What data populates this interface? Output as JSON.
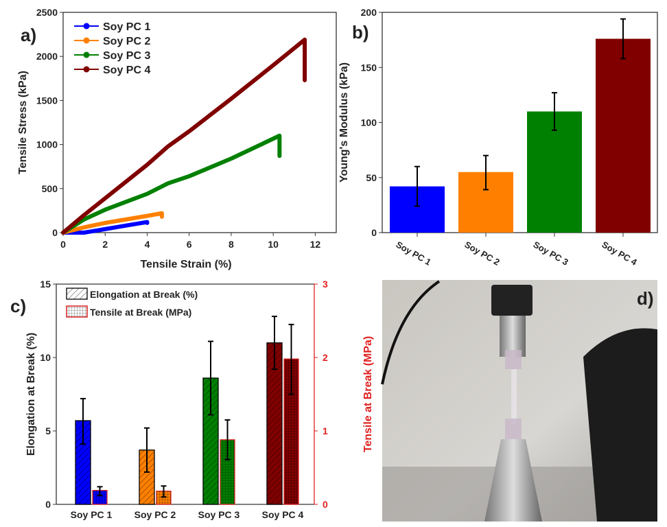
{
  "colors": {
    "pc1": "#0000ff",
    "pc2": "#ff8000",
    "pc3": "#008000",
    "pc4": "#800000",
    "right_axis": "#e02020"
  },
  "chart_data": [
    {
      "panel": "a)",
      "type": "line",
      "xlabel": "Tensile Strain (%)",
      "ylabel": "Tensile Stress (kPa)",
      "xlim": [
        0,
        13
      ],
      "ylim": [
        0,
        2500
      ],
      "xticks": [
        0,
        2,
        4,
        6,
        8,
        10,
        12
      ],
      "yticks": [
        0,
        500,
        1000,
        1500,
        2000,
        2500
      ],
      "legend": "top-left",
      "series": [
        {
          "name": "Soy PC 1",
          "color": "#0000ff",
          "points": [
            [
              0,
              0
            ],
            [
              1,
              0
            ],
            [
              2,
              40
            ],
            [
              3,
              80
            ],
            [
              4,
              120
            ],
            [
              4,
              110
            ]
          ]
        },
        {
          "name": "Soy PC 2",
          "color": "#ff8000",
          "points": [
            [
              0,
              0
            ],
            [
              1,
              60
            ],
            [
              2,
              110
            ],
            [
              3,
              150
            ],
            [
              4,
              190
            ],
            [
              4.7,
              220
            ],
            [
              4.7,
              180
            ]
          ]
        },
        {
          "name": "Soy PC 3",
          "color": "#008000",
          "points": [
            [
              0,
              0
            ],
            [
              1,
              150
            ],
            [
              2,
              260
            ],
            [
              4,
              440
            ],
            [
              5,
              560
            ],
            [
              6,
              640
            ],
            [
              8,
              840
            ],
            [
              10.3,
              1100
            ],
            [
              10.3,
              870
            ]
          ]
        },
        {
          "name": "Soy PC 4",
          "color": "#800000",
          "points": [
            [
              0,
              0
            ],
            [
              1,
              200
            ],
            [
              2,
              390
            ],
            [
              4,
              770
            ],
            [
              5,
              980
            ],
            [
              6,
              1150
            ],
            [
              8,
              1520
            ],
            [
              10,
              1900
            ],
            [
              11.5,
              2190
            ],
            [
              11.5,
              1730
            ]
          ]
        }
      ]
    },
    {
      "panel": "b)",
      "type": "bar",
      "ylabel": "Young's Modulus (kPa)",
      "ylim": [
        0,
        200
      ],
      "yticks": [
        0,
        50,
        100,
        150,
        200
      ],
      "categories": [
        "Soy PC 1",
        "Soy PC 2",
        "Soy PC 3",
        "Soy PC 4"
      ],
      "values": [
        42,
        55,
        110,
        176
      ],
      "error_low": [
        24,
        39,
        93,
        158
      ],
      "error_high": [
        60,
        70,
        127,
        194
      ],
      "colors": [
        "#0000ff",
        "#ff8000",
        "#008000",
        "#800000"
      ]
    },
    {
      "panel": "c)",
      "type": "bar",
      "ylabel": "Elongation at Break (%)",
      "y2label": "Tensile at Break (MPa)",
      "ylim": [
        0,
        15
      ],
      "y2lim": [
        0,
        3
      ],
      "yticks": [
        0,
        5,
        10,
        15
      ],
      "y2ticks": [
        0,
        1,
        2,
        3
      ],
      "legend": "top-left",
      "categories": [
        "Soy PC 1",
        "Soy PC 2",
        "Soy PC 3",
        "Soy PC 4"
      ],
      "series": [
        {
          "name": "Elongation at Break (%)",
          "axis": "left",
          "pattern": "hatch",
          "values": [
            5.7,
            3.7,
            8.6,
            11.0
          ],
          "error_low": [
            4.1,
            2.2,
            6.1,
            9.2
          ],
          "error_high": [
            7.2,
            5.2,
            11.1,
            12.8
          ]
        },
        {
          "name": "Tensile at Break (MPa)",
          "axis": "right",
          "pattern": "grid",
          "values": [
            0.19,
            0.18,
            0.88,
            1.98
          ],
          "error_low": [
            0.12,
            0.1,
            0.61,
            1.5
          ],
          "error_high": [
            0.24,
            0.25,
            1.15,
            2.45
          ]
        }
      ],
      "colors": [
        "#0000ff",
        "#ff8000",
        "#008000",
        "#800000"
      ]
    }
  ],
  "panel_d": {
    "label": "d)"
  }
}
